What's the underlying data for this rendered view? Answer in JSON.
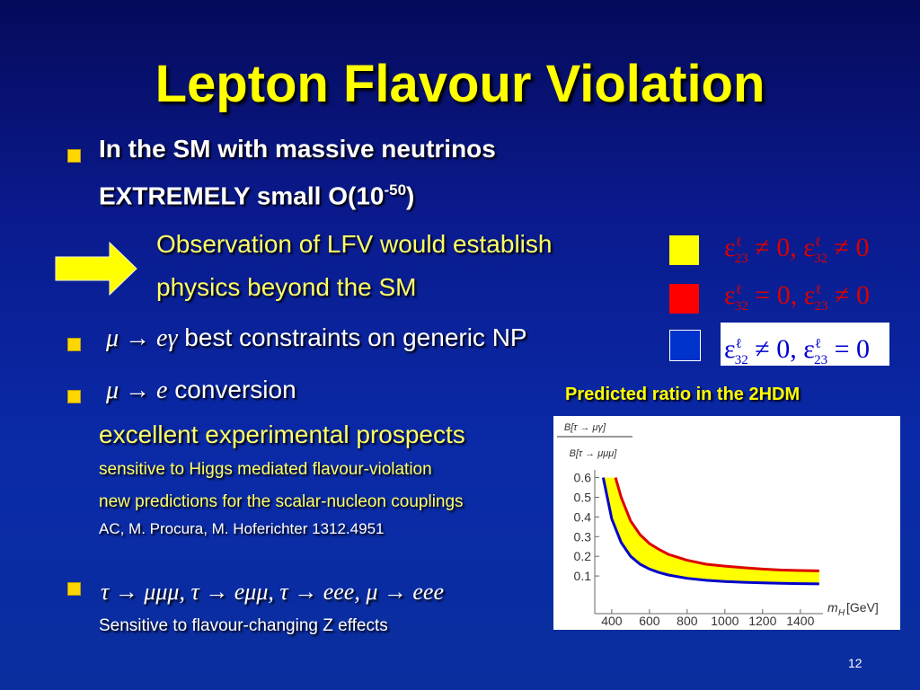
{
  "slide": {
    "title": "Lepton Flavour Violation",
    "page_number": "12",
    "bullet1": {
      "line1": "In the SM with massive neutrinos",
      "line2_pre": "EXTREMELY small O(10",
      "line2_sup": "-50",
      "line2_post": ")"
    },
    "arrow_text": {
      "line1": "Observation of LFV would establish",
      "line2": "physics beyond the SM"
    },
    "bullet2": {
      "math": "μ → eγ",
      "text": "best constraints on generic NP"
    },
    "bullet3": {
      "math": "μ → e",
      "text": "conversion"
    },
    "bullet3_sub": {
      "line1": "excellent experimental prospects",
      "line2": "sensitive to Higgs mediated flavour-violation",
      "line3": "new predictions for the scalar-nucleon couplings",
      "line4": "AC, M. Procura, M. Hoferichter 1312.4951"
    },
    "bullet4": {
      "math": "τ → μμμ, τ → eμμ, τ → eee, μ → eee",
      "text": "Sensitive to flavour-changing Z effects"
    },
    "legend": [
      {
        "color": "#ffff00",
        "formula_a": "ε",
        "sup_a": "ℓ",
        "sub_a": "23",
        "rel_a": "≠ 0,",
        "formula_b": "ε",
        "sup_b": "ℓ",
        "sub_b": "32",
        "rel_b": "≠ 0"
      },
      {
        "color": "#ff0000",
        "formula_a": "ε",
        "sup_a": "ℓ",
        "sub_a": "32",
        "rel_a": "= 0,",
        "formula_b": "ε",
        "sup_b": "ℓ",
        "sub_b": "23",
        "rel_b": "≠ 0"
      },
      {
        "color": "#0033cc",
        "formula_a": "ε",
        "sup_a": "ℓ",
        "sub_a": "32",
        "rel_a": "≠ 0,",
        "formula_b": "ε",
        "sup_b": "ℓ",
        "sub_b": "23",
        "rel_b": "= 0"
      }
    ],
    "chart_caption": "Predicted ratio in the 2HDM"
  },
  "chart_data": {
    "type": "area",
    "title": "",
    "ylabel": "B[τ → μγ] / B[τ → μμμ]",
    "ylabel_num": "B[τ → μγ]",
    "ylabel_den": "B[τ → μμμ]",
    "xlabel": "m_H [GeV]",
    "xlabel_main": "m",
    "xlabel_sub": "H",
    "xlabel_unit": "[GeV]",
    "xlim": [
      310,
      1520
    ],
    "ylim": [
      0,
      0.63
    ],
    "xticks": [
      "400",
      "600",
      "800",
      "1000",
      "1200",
      "1400"
    ],
    "yticks": [
      "0.1",
      "0.2",
      "0.3",
      "0.4",
      "0.5",
      "0.6"
    ],
    "series": [
      {
        "color": "#dd0000",
        "x": [
          420,
          450,
          500,
          550,
          600,
          650,
          700,
          800,
          900,
          1000,
          1100,
          1200,
          1300,
          1400,
          1500
        ],
        "y": [
          0.6,
          0.5,
          0.38,
          0.31,
          0.265,
          0.235,
          0.21,
          0.18,
          0.16,
          0.15,
          0.142,
          0.135,
          0.13,
          0.128,
          0.126
        ]
      },
      {
        "color": "#0000cc",
        "x": [
          355,
          400,
          450,
          500,
          550,
          600,
          650,
          700,
          800,
          900,
          1000,
          1100,
          1200,
          1300,
          1400,
          1500
        ],
        "y": [
          0.6,
          0.39,
          0.27,
          0.2,
          0.16,
          0.135,
          0.118,
          0.105,
          0.088,
          0.078,
          0.072,
          0.068,
          0.065,
          0.063,
          0.061,
          0.06
        ]
      }
    ],
    "band_color": "#ffff00"
  }
}
